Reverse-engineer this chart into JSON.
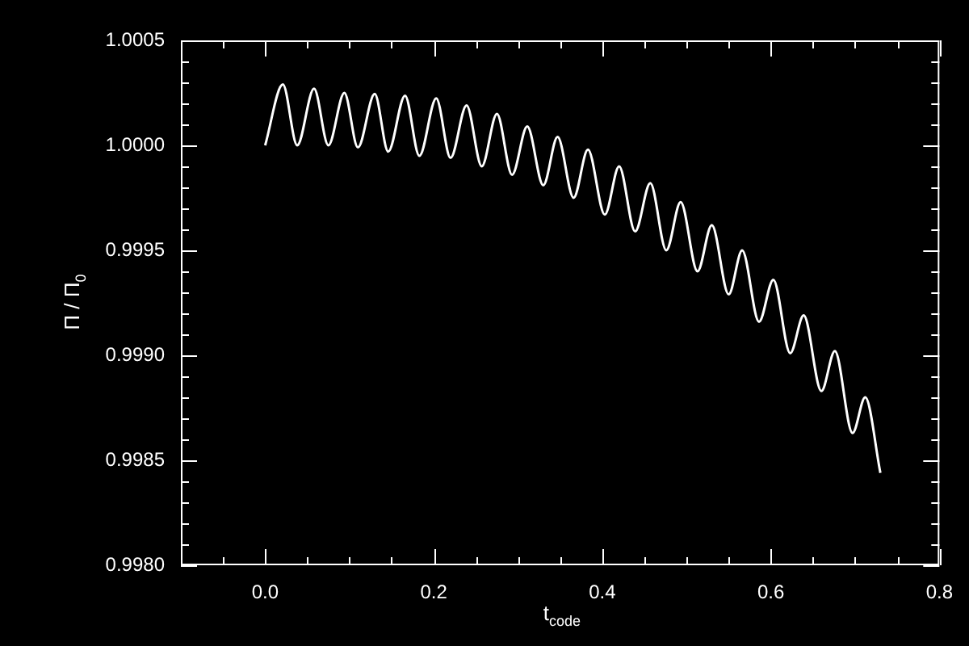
{
  "chart_data": {
    "type": "line",
    "xlabel": "t$_{code}$",
    "ylabel": "Π / Π$_{0}$",
    "color": "#ffffff",
    "x": [
      0.0,
      0.021,
      0.038,
      0.058,
      0.075,
      0.094,
      0.11,
      0.13,
      0.146,
      0.166,
      0.183,
      0.203,
      0.22,
      0.239,
      0.257,
      0.275,
      0.293,
      0.311,
      0.33,
      0.347,
      0.366,
      0.383,
      0.403,
      0.42,
      0.439,
      0.457,
      0.476,
      0.493,
      0.513,
      0.53,
      0.55,
      0.566,
      0.586,
      0.603,
      0.623,
      0.639,
      0.66,
      0.676,
      0.697,
      0.712,
      0.73
    ],
    "values": [
      1.0,
      1.00029,
      1.0,
      1.00027,
      1.0,
      1.00025,
      0.99999,
      1.000245,
      0.99997,
      1.000237,
      0.99995,
      1.000224,
      0.99994,
      1.00019,
      0.9999,
      1.00015,
      0.99986,
      1.00009,
      0.99981,
      1.00004,
      0.99975,
      0.99998,
      0.99967,
      0.9999,
      0.99959,
      0.99982,
      0.9995,
      0.99973,
      0.9994,
      0.99962,
      0.99929,
      0.9995,
      0.99916,
      0.99936,
      0.99901,
      0.99919,
      0.99883,
      0.99902,
      0.99863,
      0.9988,
      0.99844
    ],
    "xlim": [
      -0.1,
      0.8
    ],
    "ylim": [
      0.998,
      1.0005
    ],
    "xticks": [
      {
        "value": -0.1,
        "label": null
      },
      {
        "value": -0.05,
        "label": null
      },
      {
        "value": 0,
        "label": "0.0"
      },
      {
        "value": 0.05,
        "label": null
      },
      {
        "value": 0.1,
        "label": null
      },
      {
        "value": 0.15,
        "label": null
      },
      0.2,
      {
        "value": 0.25,
        "label": null
      },
      {
        "value": 0.3,
        "label": null
      },
      {
        "value": 0.35,
        "label": null
      },
      0.4,
      {
        "value": 0.45,
        "label": null
      },
      {
        "value": 0.5,
        "label": null
      },
      {
        "value": 0.55,
        "label": null
      },
      0.6,
      {
        "value": 0.65,
        "label": null
      },
      {
        "value": 0.7,
        "label": null
      },
      {
        "value": 0.75,
        "label": null
      },
      0.8
    ],
    "yticks": [
      {
        "value": 0.998,
        "label": "0.9980"
      },
      {
        "value": 0.9981,
        "label": null
      },
      {
        "value": 0.9982,
        "label": null
      },
      {
        "value": 0.9983,
        "label": null
      },
      {
        "value": 0.9984,
        "label": null
      },
      0.9985,
      {
        "value": 0.9986,
        "label": null
      },
      {
        "value": 0.9987,
        "label": null
      },
      {
        "value": 0.9988,
        "label": null
      },
      {
        "value": 0.9989,
        "label": null
      },
      {
        "value": 0.999,
        "label": "0.9990"
      },
      {
        "value": 0.9991,
        "label": null
      },
      {
        "value": 0.9992,
        "label": null
      },
      {
        "value": 0.9993,
        "label": null
      },
      {
        "value": 0.9994,
        "label": null
      },
      0.9995,
      {
        "value": 0.9996,
        "label": null
      },
      {
        "value": 0.9997,
        "label": null
      },
      {
        "value": 0.9998,
        "label": null
      },
      {
        "value": 0.9999,
        "label": null
      },
      {
        "value": 1,
        "label": "1.0000"
      },
      {
        "value": 1.0001,
        "label": null
      },
      {
        "value": 1.0002,
        "label": null
      },
      {
        "value": 1.0003,
        "label": null
      },
      {
        "value": 1.0004,
        "label": null
      },
      1.0005
    ]
  }
}
